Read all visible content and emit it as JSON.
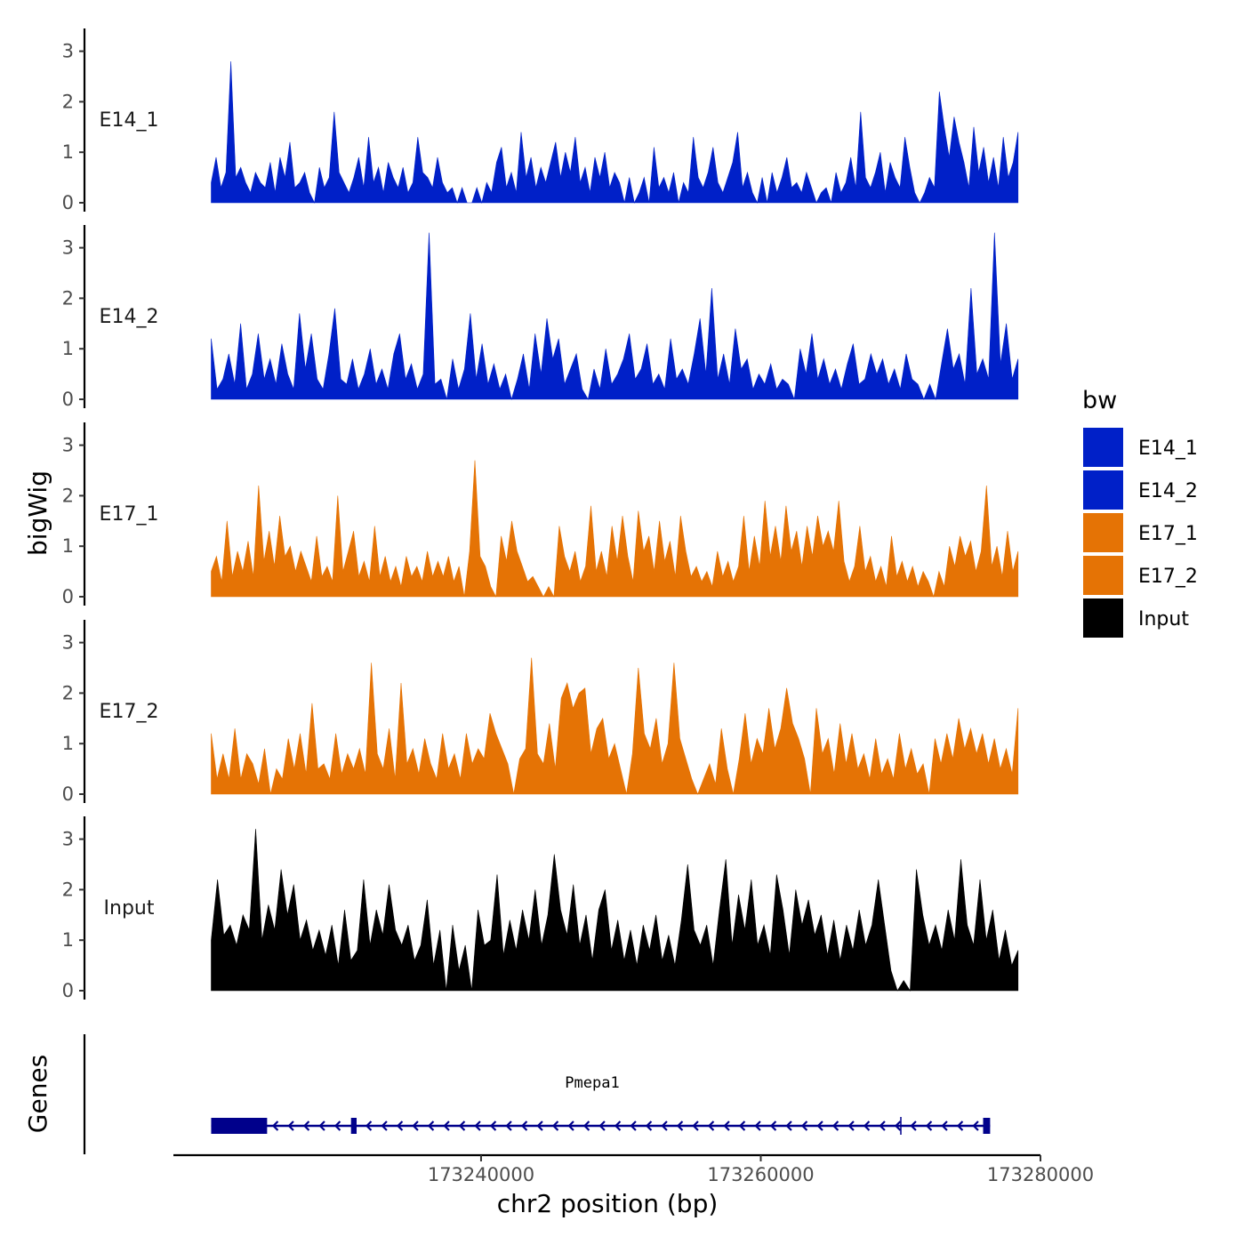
{
  "chart_data": {
    "type": "area",
    "chromosome": "chr2",
    "xlabel": "chr2 position (bp)",
    "ylabel": "bigWig",
    "gene_track_label": "Genes",
    "xlim": [
      173218000,
      173280000
    ],
    "xticks": [
      173240000,
      173260000,
      173280000
    ],
    "xtick_labels": [
      "173240000",
      "173260000",
      "173280000"
    ],
    "ylim": [
      0,
      3.3
    ],
    "yticks": [
      0,
      1,
      2,
      3
    ],
    "ytick_labels": [
      "0",
      "1",
      "2",
      "3"
    ],
    "legend": {
      "title": "bw",
      "placement": "right",
      "entries": [
        {
          "label": "E14_1",
          "color": "#0020c8"
        },
        {
          "label": "E14_2",
          "color": "#0020c8"
        },
        {
          "label": "E17_1",
          "color": "#e57305"
        },
        {
          "label": "E17_2",
          "color": "#e57305"
        },
        {
          "label": "Input",
          "color": "#000000"
        }
      ]
    },
    "signal_start": 173220700,
    "signal_end": 173278400,
    "series": [
      {
        "name": "E14_1",
        "color": "#0020c8",
        "values": [
          0.4,
          0.9,
          0.3,
          0.6,
          2.8,
          0.5,
          0.7,
          0.4,
          0.2,
          0.6,
          0.4,
          0.3,
          0.8,
          0.2,
          0.9,
          0.5,
          1.2,
          0.3,
          0.4,
          0.6,
          0.2,
          0.0,
          0.7,
          0.3,
          0.5,
          1.8,
          0.6,
          0.4,
          0.2,
          0.5,
          0.9,
          0.3,
          1.3,
          0.4,
          0.7,
          0.2,
          0.8,
          0.5,
          0.3,
          0.7,
          0.2,
          0.4,
          1.3,
          0.6,
          0.5,
          0.3,
          0.9,
          0.4,
          0.2,
          0.3,
          0.0,
          0.3,
          0.0,
          0.0,
          0.3,
          0.0,
          0.4,
          0.2,
          0.8,
          1.1,
          0.3,
          0.6,
          0.2,
          1.4,
          0.5,
          0.9,
          0.3,
          0.7,
          0.4,
          0.8,
          1.2,
          0.5,
          1.0,
          0.6,
          1.3,
          0.4,
          0.7,
          0.2,
          0.9,
          0.5,
          1.0,
          0.3,
          0.6,
          0.4,
          0.0,
          0.5,
          0.0,
          0.2,
          0.5,
          0.0,
          1.1,
          0.3,
          0.5,
          0.2,
          0.6,
          0.0,
          0.4,
          0.2,
          1.3,
          0.5,
          0.3,
          0.6,
          1.1,
          0.4,
          0.2,
          0.5,
          0.8,
          1.4,
          0.3,
          0.6,
          0.2,
          0.0,
          0.5,
          0.0,
          0.6,
          0.2,
          0.5,
          0.9,
          0.3,
          0.4,
          0.2,
          0.6,
          0.3,
          0.0,
          0.2,
          0.3,
          0.0,
          0.6,
          0.2,
          0.4,
          0.9,
          0.3,
          1.8,
          0.5,
          0.3,
          0.6,
          1.0,
          0.2,
          0.8,
          0.5,
          0.3,
          1.3,
          0.7,
          0.2,
          0.0,
          0.2,
          0.5,
          0.3,
          2.2,
          1.5,
          0.9,
          1.7,
          1.2,
          0.8,
          0.3,
          1.5,
          0.6,
          1.1,
          0.4,
          0.9,
          0.3,
          1.3,
          0.5,
          0.8,
          1.4
        ]
      },
      {
        "name": "E14_2",
        "color": "#0020c8",
        "values": [
          1.2,
          0.2,
          0.4,
          0.9,
          0.3,
          1.5,
          0.2,
          0.5,
          1.3,
          0.4,
          0.8,
          0.3,
          1.1,
          0.5,
          0.2,
          1.7,
          0.6,
          1.3,
          0.4,
          0.2,
          0.9,
          1.8,
          0.4,
          0.3,
          0.8,
          0.2,
          0.5,
          1.0,
          0.3,
          0.6,
          0.2,
          0.9,
          1.3,
          0.4,
          0.7,
          0.2,
          0.5,
          3.3,
          0.3,
          0.4,
          0.0,
          0.8,
          0.2,
          0.6,
          1.7,
          0.4,
          1.1,
          0.3,
          0.7,
          0.2,
          0.5,
          0.0,
          0.4,
          0.9,
          0.2,
          1.3,
          0.5,
          1.6,
          0.8,
          1.2,
          0.3,
          0.6,
          0.9,
          0.2,
          0.0,
          0.6,
          0.2,
          1.0,
          0.3,
          0.5,
          0.8,
          1.3,
          0.4,
          0.6,
          1.1,
          0.3,
          0.5,
          0.2,
          1.2,
          0.4,
          0.6,
          0.3,
          0.9,
          1.6,
          0.5,
          2.2,
          0.4,
          0.9,
          0.3,
          1.4,
          0.6,
          0.8,
          0.2,
          0.5,
          0.3,
          0.7,
          0.2,
          0.4,
          0.3,
          0.0,
          1.0,
          0.5,
          1.3,
          0.4,
          0.8,
          0.3,
          0.6,
          0.2,
          0.7,
          1.1,
          0.3,
          0.4,
          0.9,
          0.5,
          0.8,
          0.3,
          0.6,
          0.2,
          0.9,
          0.4,
          0.3,
          0.0,
          0.3,
          0.0,
          0.7,
          1.4,
          0.6,
          0.9,
          0.3,
          2.2,
          0.5,
          0.8,
          0.4,
          3.3,
          0.7,
          1.5,
          0.4,
          0.8
        ]
      },
      {
        "name": "E17_1",
        "color": "#e57305",
        "values": [
          0.5,
          0.8,
          0.3,
          1.5,
          0.4,
          0.9,
          0.5,
          1.1,
          0.4,
          2.2,
          0.7,
          1.3,
          0.6,
          1.6,
          0.8,
          1.0,
          0.5,
          0.9,
          0.6,
          0.3,
          1.2,
          0.4,
          0.6,
          0.3,
          2.0,
          0.5,
          0.9,
          1.3,
          0.4,
          0.7,
          0.3,
          1.4,
          0.4,
          0.8,
          0.3,
          0.6,
          0.2,
          0.8,
          0.4,
          0.6,
          0.3,
          0.9,
          0.4,
          0.7,
          0.4,
          0.8,
          0.3,
          0.6,
          0.0,
          0.9,
          2.7,
          0.8,
          0.6,
          0.2,
          0.0,
          1.2,
          0.7,
          1.5,
          0.9,
          0.6,
          0.3,
          0.4,
          0.2,
          0.0,
          0.2,
          0.0,
          1.4,
          0.8,
          0.5,
          0.9,
          0.3,
          0.6,
          1.8,
          0.5,
          0.9,
          0.4,
          1.4,
          0.7,
          1.6,
          0.8,
          0.3,
          1.7,
          0.9,
          1.2,
          0.5,
          1.5,
          0.7,
          1.1,
          0.4,
          1.6,
          0.9,
          0.4,
          0.6,
          0.3,
          0.5,
          0.2,
          0.9,
          0.4,
          0.7,
          0.3,
          0.6,
          1.6,
          0.5,
          1.2,
          0.6,
          1.9,
          0.8,
          1.4,
          0.7,
          1.8,
          0.9,
          1.3,
          0.6,
          1.4,
          0.8,
          1.6,
          1.0,
          1.3,
          0.9,
          1.9,
          0.7,
          0.3,
          0.6,
          1.4,
          0.5,
          0.8,
          0.3,
          0.6,
          0.2,
          1.2,
          0.4,
          0.7,
          0.3,
          0.6,
          0.2,
          0.5,
          0.3,
          0.0,
          0.5,
          0.2,
          1.0,
          0.6,
          1.2,
          0.8,
          1.1,
          0.5,
          0.9,
          2.2,
          0.6,
          1.0,
          0.4,
          1.3,
          0.5,
          0.9
        ]
      },
      {
        "name": "E17_2",
        "color": "#e57305",
        "values": [
          1.2,
          0.3,
          0.8,
          0.3,
          1.3,
          0.3,
          0.8,
          0.6,
          0.2,
          0.9,
          0.0,
          0.5,
          0.3,
          1.1,
          0.5,
          1.2,
          0.4,
          1.8,
          0.5,
          0.6,
          0.3,
          1.2,
          0.4,
          0.8,
          0.5,
          0.9,
          0.4,
          2.6,
          0.8,
          0.5,
          1.3,
          0.3,
          2.2,
          0.6,
          0.9,
          0.4,
          1.1,
          0.6,
          0.3,
          1.2,
          0.5,
          0.8,
          0.3,
          1.2,
          0.6,
          0.9,
          0.7,
          1.6,
          1.2,
          0.9,
          0.6,
          0.0,
          0.7,
          0.9,
          2.7,
          0.8,
          0.6,
          1.4,
          0.5,
          1.9,
          2.2,
          1.7,
          2.0,
          2.1,
          0.8,
          1.3,
          1.5,
          0.7,
          1.0,
          0.5,
          0.0,
          0.8,
          2.5,
          1.2,
          0.9,
          1.5,
          0.6,
          1.0,
          2.6,
          1.1,
          0.7,
          0.3,
          0.0,
          0.3,
          0.6,
          0.2,
          1.3,
          0.5,
          0.0,
          0.7,
          1.6,
          0.6,
          1.1,
          0.8,
          1.7,
          0.9,
          1.3,
          2.1,
          1.4,
          1.1,
          0.7,
          0.0,
          1.7,
          0.8,
          1.1,
          0.4,
          1.4,
          0.6,
          1.2,
          0.5,
          0.8,
          0.3,
          1.1,
          0.4,
          0.7,
          0.3,
          1.2,
          0.5,
          0.9,
          0.4,
          0.6,
          0.0,
          1.1,
          0.6,
          1.2,
          0.7,
          1.5,
          0.9,
          1.3,
          0.8,
          1.2,
          0.6,
          1.1,
          0.5,
          0.9,
          0.4,
          1.7
        ]
      },
      {
        "name": "Input",
        "color": "#000000",
        "values": [
          1.0,
          2.2,
          1.1,
          1.3,
          0.9,
          1.5,
          1.2,
          3.2,
          1.0,
          1.7,
          1.2,
          2.4,
          1.5,
          2.1,
          1.0,
          1.4,
          0.8,
          1.2,
          0.7,
          1.3,
          0.5,
          1.6,
          0.6,
          0.8,
          2.2,
          0.9,
          1.6,
          1.1,
          2.1,
          1.2,
          0.9,
          1.3,
          0.6,
          0.9,
          1.8,
          0.5,
          1.2,
          0.0,
          1.3,
          0.4,
          0.9,
          0.0,
          1.6,
          0.9,
          1.0,
          2.3,
          0.7,
          1.4,
          0.8,
          1.6,
          1.0,
          2.0,
          0.9,
          1.5,
          2.7,
          1.6,
          1.1,
          2.1,
          0.9,
          1.5,
          0.6,
          1.6,
          2.0,
          0.8,
          1.4,
          0.6,
          1.2,
          0.5,
          1.3,
          0.8,
          1.5,
          0.6,
          1.1,
          0.5,
          1.4,
          2.5,
          1.2,
          0.9,
          1.3,
          0.5,
          1.6,
          2.6,
          0.9,
          1.9,
          1.2,
          2.2,
          0.9,
          1.3,
          0.7,
          2.3,
          1.6,
          0.7,
          2.0,
          1.3,
          1.8,
          1.1,
          1.5,
          0.7,
          1.4,
          0.6,
          1.3,
          0.8,
          1.6,
          0.9,
          1.3,
          2.2,
          1.3,
          0.4,
          0.0,
          0.2,
          0.0,
          2.4,
          1.5,
          0.9,
          1.3,
          0.8,
          1.6,
          1.0,
          2.6,
          1.3,
          0.9,
          2.2,
          1.0,
          1.6,
          0.6,
          1.2,
          0.5,
          0.8
        ]
      }
    ],
    "gene": {
      "name": "Pmepa1",
      "strand": "-",
      "color": "#00008b",
      "tx_start": 173220700,
      "tx_end": 173276400,
      "exons": [
        [
          173220700,
          173224700
        ],
        [
          173230700,
          173231100
        ],
        [
          173275900,
          173276400
        ]
      ]
    }
  }
}
